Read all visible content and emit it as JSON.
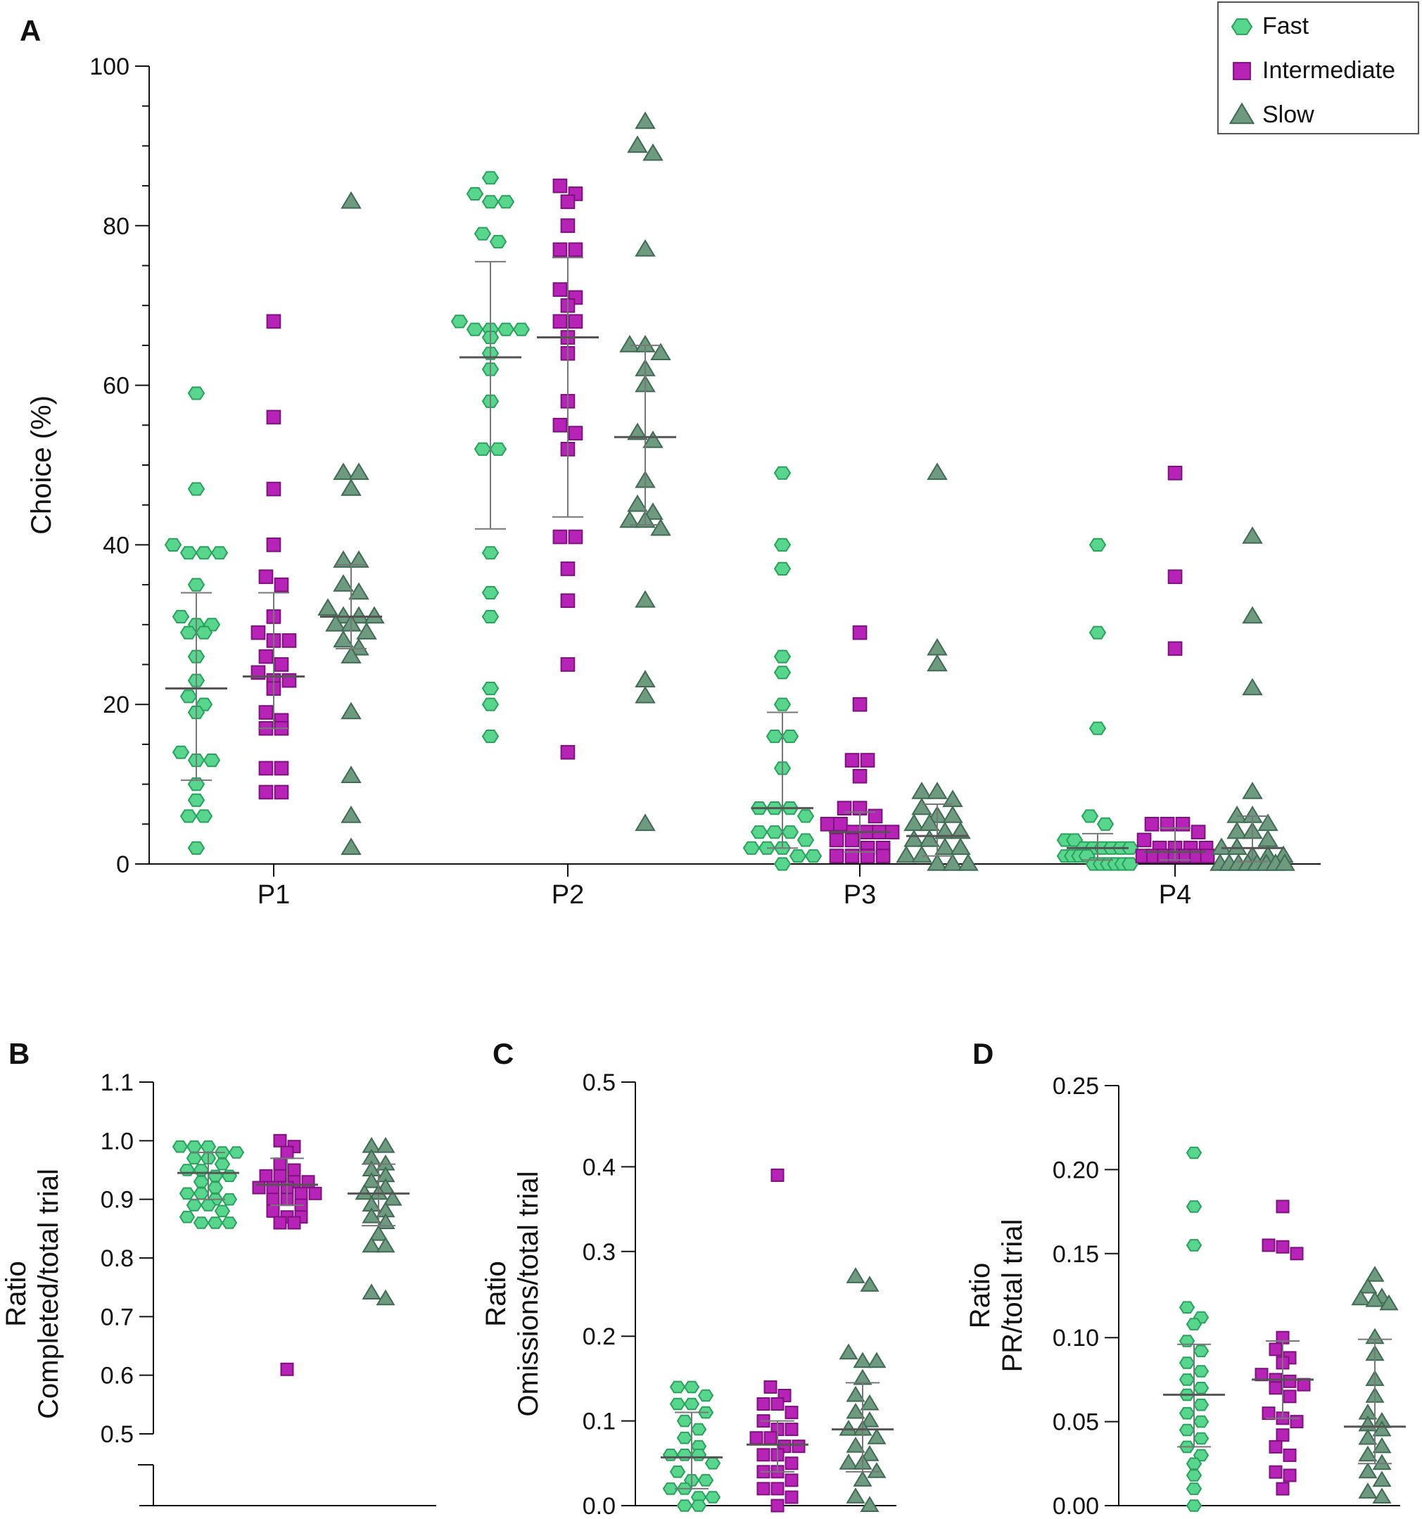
{
  "figure": {
    "panel_letters": [
      "A",
      "B",
      "C",
      "D"
    ]
  },
  "colors": {
    "fast_fill": "#58d68d",
    "fast_stroke": "#27a25a",
    "intermediate_fill": "#b722b7",
    "intermediate_stroke": "#7d127d",
    "slow_fill": "#6e9a80",
    "slow_stroke": "#3f6b52",
    "axis": "#111111",
    "errorbar": "#777777"
  },
  "legend": {
    "items": [
      "Fast",
      "Intermediate",
      "Slow"
    ],
    "position": "top-right"
  },
  "chart_data": [
    {
      "id": "A",
      "type": "scatter",
      "title": "",
      "xlabel": "",
      "ylabel": "Choice (%)",
      "categories": [
        "P1",
        "P2",
        "P3",
        "P4"
      ],
      "ylim": [
        0,
        100
      ],
      "yticks": [
        0,
        20,
        40,
        60,
        80,
        100
      ],
      "ytick_labels": [
        "0",
        "20",
        "40",
        "60",
        "80",
        "100"
      ],
      "groups": [
        "Fast",
        "Intermediate",
        "Slow"
      ],
      "series": [
        {
          "name": "Fast",
          "marker": "hexagon",
          "data": [
            {
              "category": "P1",
              "mean": 22,
              "err_low": 10.5,
              "err_high": 34,
              "values": [
                59,
                47,
                40,
                39,
                39,
                39,
                35,
                31,
                30,
                30,
                29,
                29,
                26,
                23,
                21,
                20,
                19,
                14,
                13,
                13,
                10,
                8,
                6,
                6,
                2
              ]
            },
            {
              "category": "P2",
              "mean": 63.5,
              "err_low": 42,
              "err_high": 75.5,
              "values": [
                86,
                84,
                83,
                83,
                79,
                78,
                68,
                67,
                67,
                67,
                67,
                66,
                64,
                62,
                58,
                52,
                52,
                39,
                34,
                31,
                22,
                20,
                16
              ]
            },
            {
              "category": "P3",
              "mean": 7,
              "err_low": 2,
              "err_high": 19,
              "values": [
                49,
                40,
                37,
                26,
                24,
                20,
                16,
                16,
                12,
                7,
                7,
                7,
                6,
                4,
                4,
                4,
                3,
                2,
                2,
                2,
                1,
                1,
                0
              ]
            },
            {
              "category": "P4",
              "mean": 2,
              "err_low": 0.5,
              "err_high": 3.8,
              "values": [
                40,
                29,
                17,
                6,
                5,
                3,
                3,
                2,
                2,
                2,
                2,
                2,
                2,
                1,
                1,
                1,
                1,
                0,
                0,
                0,
                0,
                0,
                0
              ]
            }
          ]
        },
        {
          "name": "Intermediate",
          "marker": "square",
          "data": [
            {
              "category": "P1",
              "mean": 23.5,
              "err_low": 17,
              "err_high": 34,
              "values": [
                68,
                56,
                47,
                40,
                36,
                35,
                31,
                29,
                28,
                28,
                26,
                25,
                24,
                23,
                23,
                22,
                19,
                18,
                17,
                17,
                12,
                12,
                9,
                9
              ]
            },
            {
              "category": "P2",
              "mean": 66,
              "err_low": 43.5,
              "err_high": 76,
              "values": [
                85,
                84,
                83,
                80,
                77,
                77,
                72,
                71,
                70,
                68,
                68,
                66,
                64,
                58,
                55,
                54,
                52,
                41,
                41,
                37,
                33,
                25,
                14
              ]
            },
            {
              "category": "P3",
              "mean": 4,
              "err_low": 1.5,
              "err_high": 6.5,
              "values": [
                29,
                20,
                13,
                13,
                11,
                7,
                7,
                6,
                5,
                5,
                4,
                4,
                4,
                4,
                3,
                3,
                2,
                2,
                1,
                1,
                1,
                1
              ]
            },
            {
              "category": "P4",
              "mean": 1.5,
              "err_low": 0.5,
              "err_high": 4.5,
              "values": [
                49,
                36,
                27,
                5,
                5,
                5,
                4,
                3,
                2,
                2,
                2,
                2,
                1,
                1,
                1,
                1,
                1,
                1,
                1
              ]
            }
          ]
        },
        {
          "name": "Slow",
          "marker": "triangle",
          "data": [
            {
              "category": "P1",
              "mean": 31,
              "err_low": 27,
              "err_high": 37.5,
              "values": [
                83,
                49,
                49,
                47,
                38,
                38,
                35,
                34,
                32,
                31,
                31,
                31,
                30,
                30,
                29,
                28,
                27,
                26,
                19,
                11,
                6,
                2
              ]
            },
            {
              "category": "P2",
              "mean": 53.5,
              "err_low": 42.5,
              "err_high": 65,
              "values": [
                93,
                90,
                89,
                77,
                65,
                65,
                64,
                62,
                60,
                54,
                53,
                48,
                45,
                44,
                43,
                43,
                42,
                33,
                23,
                21,
                5
              ]
            },
            {
              "category": "P3",
              "mean": 3.5,
              "err_low": 1,
              "err_high": 7.5,
              "values": [
                49,
                27,
                25,
                9,
                9,
                8,
                7,
                6,
                6,
                5,
                5,
                4,
                4,
                3,
                3,
                2,
                2,
                1,
                1,
                0,
                0,
                0
              ]
            },
            {
              "category": "P4",
              "mean": 2,
              "err_low": 0.3,
              "err_high": 6,
              "values": [
                41,
                31,
                22,
                9,
                6,
                6,
                5,
                4,
                4,
                3,
                2,
                2,
                1,
                1,
                1,
                0,
                0,
                0,
                0,
                0,
                0,
                0,
                0
              ]
            }
          ]
        }
      ]
    },
    {
      "id": "B",
      "type": "scatter",
      "title": "",
      "ylabel": "Ratio\nCompleted/total trial",
      "ylim": [
        0.5,
        1.1
      ],
      "yticks": [
        0.5,
        0.6,
        0.7,
        0.8,
        0.9,
        1.0,
        1.1
      ],
      "ytick_labels": [
        "0.5",
        "0.6",
        "0.7",
        "0.8",
        "0.9",
        "1.0",
        "1.1"
      ],
      "axis_break": true,
      "series": [
        {
          "name": "Fast",
          "marker": "hexagon",
          "mean": 0.945,
          "err_low": 0.9,
          "err_high": 0.98,
          "values": [
            0.99,
            0.99,
            0.99,
            0.98,
            0.98,
            0.97,
            0.97,
            0.96,
            0.95,
            0.95,
            0.94,
            0.94,
            0.93,
            0.92,
            0.91,
            0.91,
            0.9,
            0.9,
            0.89,
            0.89,
            0.88,
            0.87,
            0.86,
            0.86,
            0.86
          ]
        },
        {
          "name": "Intermediate",
          "marker": "square",
          "mean": 0.925,
          "err_low": 0.89,
          "err_high": 0.97,
          "values": [
            1.0,
            0.99,
            0.98,
            0.96,
            0.95,
            0.94,
            0.94,
            0.93,
            0.93,
            0.92,
            0.92,
            0.92,
            0.91,
            0.91,
            0.9,
            0.9,
            0.89,
            0.88,
            0.87,
            0.87,
            0.86,
            0.86,
            0.61
          ]
        },
        {
          "name": "Slow",
          "marker": "triangle",
          "mean": 0.91,
          "err_low": 0.855,
          "err_high": 0.96,
          "values": [
            0.99,
            0.99,
            0.97,
            0.96,
            0.95,
            0.94,
            0.93,
            0.92,
            0.91,
            0.91,
            0.9,
            0.89,
            0.88,
            0.87,
            0.86,
            0.84,
            0.82,
            0.82,
            0.74,
            0.73
          ]
        }
      ]
    },
    {
      "id": "C",
      "type": "scatter",
      "title": "",
      "ylabel": "Ratio\nOmissions/total trial",
      "ylim": [
        0,
        0.5
      ],
      "yticks": [
        0,
        0.1,
        0.2,
        0.3,
        0.4,
        0.5
      ],
      "ytick_labels": [
        "0.0",
        "0.1",
        "0.2",
        "0.3",
        "0.4",
        "0.5"
      ],
      "series": [
        {
          "name": "Fast",
          "marker": "hexagon",
          "mean": 0.057,
          "err_low": 0.02,
          "err_high": 0.11,
          "values": [
            0.14,
            0.14,
            0.13,
            0.12,
            0.12,
            0.11,
            0.1,
            0.09,
            0.08,
            0.07,
            0.06,
            0.06,
            0.06,
            0.05,
            0.04,
            0.03,
            0.03,
            0.02,
            0.02,
            0.01,
            0.01,
            0.0,
            0.0
          ]
        },
        {
          "name": "Intermediate",
          "marker": "square",
          "mean": 0.072,
          "err_low": 0.04,
          "err_high": 0.1,
          "values": [
            0.39,
            0.14,
            0.13,
            0.12,
            0.12,
            0.11,
            0.1,
            0.09,
            0.09,
            0.08,
            0.08,
            0.07,
            0.07,
            0.06,
            0.06,
            0.05,
            0.04,
            0.04,
            0.03,
            0.02,
            0.02,
            0.01,
            0.0
          ]
        },
        {
          "name": "Slow",
          "marker": "triangle",
          "mean": 0.09,
          "err_low": 0.04,
          "err_high": 0.145,
          "values": [
            0.27,
            0.26,
            0.18,
            0.17,
            0.17,
            0.15,
            0.13,
            0.12,
            0.11,
            0.1,
            0.09,
            0.09,
            0.08,
            0.07,
            0.06,
            0.05,
            0.05,
            0.04,
            0.03,
            0.01,
            0.0
          ]
        }
      ]
    },
    {
      "id": "D",
      "type": "scatter",
      "title": "",
      "ylabel": "Ratio\nPR/total trial",
      "ylim": [
        0,
        0.25
      ],
      "yticks": [
        0,
        0.05,
        0.1,
        0.15,
        0.2,
        0.25
      ],
      "ytick_labels": [
        "0.00",
        "0.05",
        "0.10",
        "0.15",
        "0.20",
        "0.25"
      ],
      "series": [
        {
          "name": "Fast",
          "marker": "hexagon",
          "mean": 0.066,
          "err_low": 0.035,
          "err_high": 0.096,
          "values": [
            0.21,
            0.178,
            0.155,
            0.118,
            0.112,
            0.108,
            0.098,
            0.092,
            0.085,
            0.08,
            0.075,
            0.07,
            0.066,
            0.06,
            0.055,
            0.05,
            0.045,
            0.04,
            0.035,
            0.03,
            0.025,
            0.018,
            0.01,
            0.0
          ]
        },
        {
          "name": "Intermediate",
          "marker": "square",
          "mean": 0.075,
          "err_low": 0.052,
          "err_high": 0.098,
          "values": [
            0.178,
            0.155,
            0.154,
            0.15,
            0.1,
            0.093,
            0.088,
            0.085,
            0.078,
            0.075,
            0.074,
            0.072,
            0.07,
            0.065,
            0.055,
            0.052,
            0.05,
            0.042,
            0.035,
            0.03,
            0.02,
            0.018,
            0.01
          ]
        },
        {
          "name": "Slow",
          "marker": "triangle",
          "mean": 0.047,
          "err_low": 0.025,
          "err_high": 0.099,
          "values": [
            0.137,
            0.13,
            0.124,
            0.123,
            0.122,
            0.12,
            0.1,
            0.09,
            0.075,
            0.065,
            0.055,
            0.05,
            0.048,
            0.045,
            0.04,
            0.035,
            0.03,
            0.025,
            0.02,
            0.015,
            0.008,
            0.005
          ]
        }
      ]
    }
  ]
}
